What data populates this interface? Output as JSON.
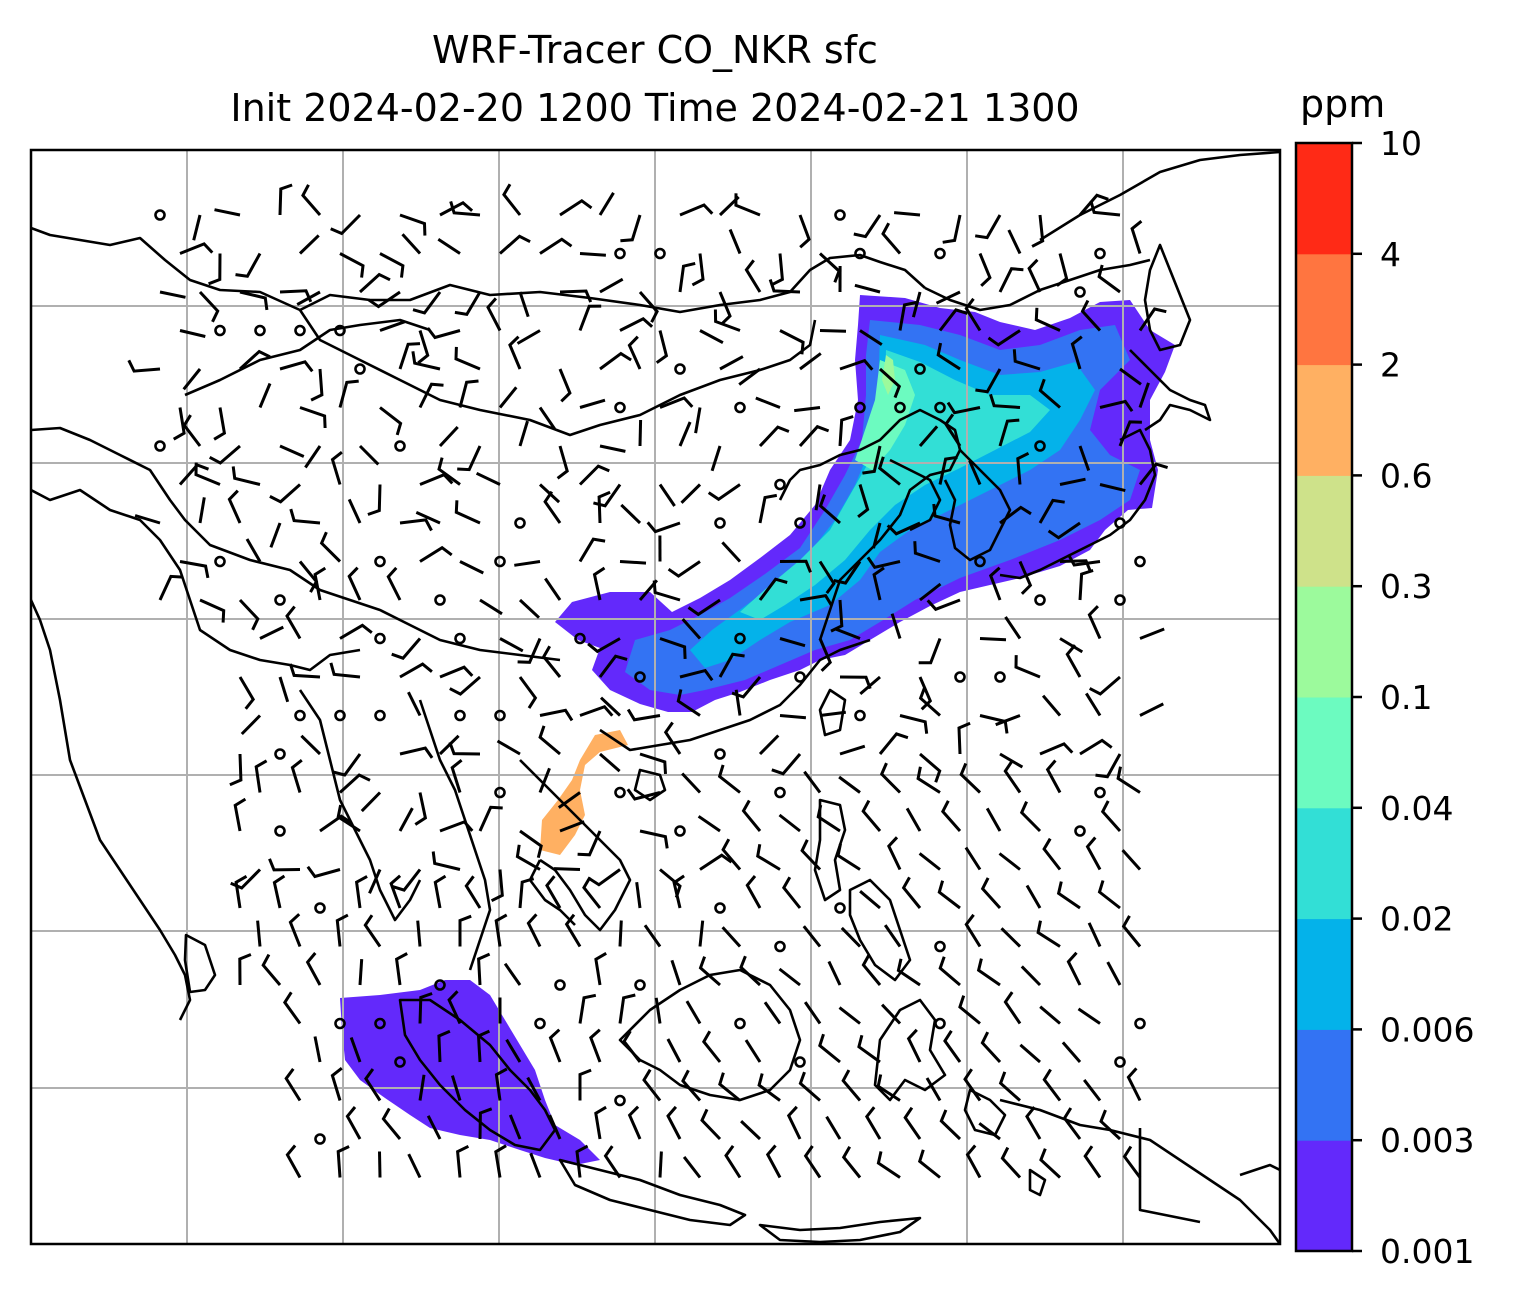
{
  "title_line1": "WRF-Tracer CO_NKR sfc",
  "title_line2": "Init 2024-02-20 1200 Time 2024-02-21 1300",
  "colorbar": {
    "units": "ppm",
    "levels": [
      "0.001",
      "0.003",
      "0.006",
      "0.02",
      "0.04",
      "0.1",
      "0.3",
      "0.6",
      "2",
      "4",
      "10"
    ],
    "colors": [
      "#6329fb",
      "#3373f3",
      "#04b2ea",
      "#32dfd6",
      "#6cfbc0",
      "#9cfa9c",
      "#cee28a",
      "#ffb062",
      "#ff7540",
      "#ff2a16"
    ]
  },
  "map": {
    "grid": true,
    "overlay": "wind-barbs",
    "fill_colors": {
      "level1": "#6329fb",
      "level2": "#3373f3",
      "level3": "#04b2ea",
      "level4": "#32dfd6",
      "level5": "#6cfbc0",
      "level6": "#9cfa9c",
      "level8": "#ffb062"
    }
  }
}
